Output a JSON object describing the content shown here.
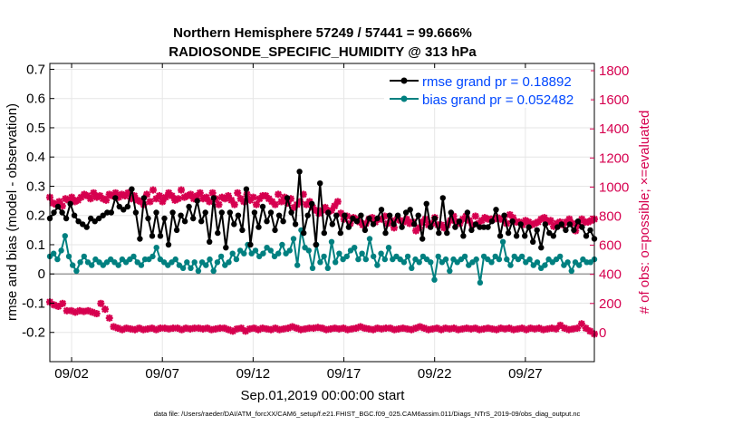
{
  "chart_data": {
    "type": "line",
    "title_line1": "Northern Hemisphere 57249 / 57441 = 99.666%",
    "title_line2": "RADIOSONDE_SPECIFIC_HUMIDITY @ 313 hPa",
    "xlabel": "Sep.01,2019 00:00:00 start",
    "ylabel_left": "rmse and bias (model - observation)",
    "ylabel_right": "# of obs: o=possible; ×=evaluated",
    "footer": "data file: /Users/raeder/DAI/ATM_forcXX/CAM6_setup/f.e21.FHIST_BGC.f09_025.CAM6assim.011/Diags_NTrS_2019-09/obs_diag_output.nc",
    "x_range": [
      0.8,
      30.8
    ],
    "xticks": [
      {
        "value": 2,
        "label": "09/02"
      },
      {
        "value": 7,
        "label": "09/07"
      },
      {
        "value": 12,
        "label": "09/12"
      },
      {
        "value": 17,
        "label": "09/17"
      },
      {
        "value": 22,
        "label": "09/22"
      },
      {
        "value": 27,
        "label": "09/27"
      }
    ],
    "ylim_left": [
      -0.3,
      0.72
    ],
    "yticks_left": [
      {
        "value": -0.2,
        "label": "-0.2"
      },
      {
        "value": -0.1,
        "label": "-0.1"
      },
      {
        "value": 0,
        "label": "0"
      },
      {
        "value": 0.1,
        "label": "0.1"
      },
      {
        "value": 0.2,
        "label": "0.2"
      },
      {
        "value": 0.3,
        "label": "0.3"
      },
      {
        "value": 0.4,
        "label": "0.4"
      },
      {
        "value": 0.5,
        "label": "0.5"
      },
      {
        "value": 0.6,
        "label": "0.6"
      },
      {
        "value": 0.7,
        "label": "0.7"
      }
    ],
    "ylim_right": [
      -200,
      1850
    ],
    "yticks_right": [
      {
        "value": 0,
        "label": "0"
      },
      {
        "value": 200,
        "label": "200"
      },
      {
        "value": 400,
        "label": "400"
      },
      {
        "value": 600,
        "label": "600"
      },
      {
        "value": 800,
        "label": "800"
      },
      {
        "value": 1000,
        "label": "1000"
      },
      {
        "value": 1200,
        "label": "1200"
      },
      {
        "value": 1400,
        "label": "1400"
      },
      {
        "value": 1600,
        "label": "1600"
      },
      {
        "value": 1800,
        "label": "1800"
      }
    ],
    "grid": true,
    "legend_location": "top-right",
    "colors": {
      "rmse": "#000000",
      "bias": "#008080",
      "obs": "#d6004f",
      "legend_text": "#0047ff",
      "right_axis": "#d6004f",
      "grid": "#e6e6e6"
    },
    "series": [
      {
        "name": "rmse grand pr = 0.18892",
        "axis": "left",
        "marker": "circle",
        "values": [
          0.19,
          0.21,
          0.23,
          0.21,
          0.19,
          0.24,
          0.2,
          0.18,
          0.17,
          0.16,
          0.19,
          0.18,
          0.19,
          0.2,
          0.21,
          0.21,
          0.26,
          0.23,
          0.22,
          0.23,
          0.29,
          0.21,
          0.12,
          0.26,
          0.19,
          0.13,
          0.21,
          0.13,
          0.19,
          0.1,
          0.21,
          0.15,
          0.2,
          0.18,
          0.23,
          0.19,
          0.25,
          0.18,
          0.21,
          0.11,
          0.26,
          0.14,
          0.21,
          0.09,
          0.21,
          0.17,
          0.2,
          0.15,
          0.29,
          0.1,
          0.21,
          0.16,
          0.23,
          0.18,
          0.21,
          0.15,
          0.2,
          0.18,
          0.26,
          0.21,
          0.17,
          0.35,
          0.14,
          0.2,
          0.24,
          0.1,
          0.31,
          0.14,
          0.21,
          0.17,
          0.2,
          0.14,
          0.2,
          0.16,
          0.19,
          0.18,
          0.2,
          0.15,
          0.19,
          0.17,
          0.19,
          0.22,
          0.14,
          0.2,
          0.17,
          0.2,
          0.16,
          0.21,
          0.22,
          0.17,
          0.2,
          0.12,
          0.24,
          0.16,
          0.19,
          0.14,
          0.26,
          0.14,
          0.21,
          0.16,
          0.18,
          0.13,
          0.21,
          0.15,
          0.17,
          0.16,
          0.16,
          0.16,
          0.18,
          0.22,
          0.13,
          0.2,
          0.14,
          0.18,
          0.13,
          0.17,
          0.13,
          0.16,
          0.11,
          0.15,
          0.09,
          0.17,
          0.14,
          0.13,
          0.16,
          0.17,
          0.15,
          0.17,
          0.15,
          0.18,
          0.16,
          0.13,
          0.15,
          0.12
        ]
      },
      {
        "name": "bias grand pr = 0.052482",
        "axis": "left",
        "marker": "circle",
        "values": [
          0.06,
          0.07,
          0.05,
          0.08,
          0.13,
          0.06,
          0.03,
          0.01,
          0.04,
          0.06,
          0.04,
          0.03,
          0.05,
          0.04,
          0.03,
          0.04,
          0.05,
          0.04,
          0.03,
          0.05,
          0.04,
          0.05,
          0.06,
          0.04,
          0.03,
          0.05,
          0.05,
          0.06,
          0.09,
          0.05,
          0.04,
          0.03,
          0.04,
          0.05,
          0.03,
          0.02,
          0.04,
          0.02,
          0.04,
          0.01,
          0.04,
          0.03,
          0.05,
          0.01,
          0.04,
          0.06,
          0.03,
          0.04,
          0.07,
          0.05,
          0.08,
          0.07,
          0.1,
          0.07,
          0.08,
          0.06,
          0.07,
          0.09,
          0.08,
          0.06,
          0.07,
          0.1,
          0.07,
          0.08,
          0.12,
          0.03,
          0.15,
          0.09,
          0.08,
          0.02,
          0.1,
          0.04,
          0.06,
          0.02,
          0.11,
          0.04,
          0.07,
          0.05,
          0.06,
          0.08,
          0.09,
          0.05,
          0.07,
          0.05,
          0.12,
          0.06,
          0.03,
          0.07,
          0.05,
          0.09,
          0.05,
          0.06,
          0.05,
          0.04,
          0.06,
          0.02,
          0.05,
          0.04,
          0.06,
          0.05,
          0.04,
          -0.02,
          0.06,
          0.04,
          0.05,
          0.01,
          0.05,
          0.04,
          0.05,
          0.06,
          0.03,
          0.04,
          0.05,
          -0.03,
          0.06,
          0.05,
          0.04,
          0.06,
          0.05,
          0.11,
          0.05,
          0.03,
          0.06,
          0.05,
          0.06,
          0.04,
          0.05,
          0.03,
          0.04,
          0.02,
          0.03,
          0.05,
          0.04,
          0.05,
          0.06,
          0.03,
          0.04,
          0.01,
          0.04,
          0.03,
          0.05,
          0.04,
          0.04,
          0.05
        ]
      },
      {
        "name": "# of obs evaluated",
        "axis": "right",
        "marker": "asterisk",
        "connect": false,
        "values": [
          930,
          890,
          880,
          900,
          870,
          920,
          910,
          930,
          900,
          910,
          930,
          950,
          940,
          920,
          960,
          930,
          940,
          920,
          910,
          950,
          940,
          960,
          930,
          950,
          940,
          960,
          920,
          940,
          910,
          900,
          880,
          950,
          900,
          980,
          920,
          940,
          900,
          930,
          960,
          940,
          910,
          920,
          980,
          930,
          940,
          950,
          920,
          940,
          960,
          920,
          930,
          900,
          960,
          920,
          880,
          930,
          920,
          940,
          910,
          880,
          960,
          920,
          900,
          950,
          910,
          930,
          880,
          920,
          940,
          940,
          920,
          900,
          880,
          950,
          900,
          930,
          890,
          920,
          860,
          880,
          900,
          950,
          880,
          900,
          860,
          840,
          820,
          840,
          860,
          830,
          840,
          870,
          900,
          820,
          780,
          800,
          750,
          790,
          780,
          760,
          740,
          750,
          780,
          790,
          760,
          780,
          780,
          800,
          750,
          770,
          720,
          780,
          770,
          760,
          780,
          750,
          760,
          700,
          720,
          760,
          780,
          740,
          750,
          790,
          740,
          740,
          720,
          740,
          770,
          800,
          760,
          750,
          780,
          800,
          770,
          740,
          800,
          750,
          770,
          790,
          780,
          780,
          780,
          790,
          780,
          780,
          750,
          810,
          790,
          760,
          760,
          740,
          770,
          760,
          740,
          750,
          760,
          780,
          790,
          760,
          770,
          730,
          750,
          760,
          740,
          760,
          780,
          750,
          700,
          740,
          780,
          760,
          760,
          770,
          780
        ]
      },
      {
        "name": "# of obs possible",
        "axis": "right",
        "marker": "asterisk",
        "connect": false,
        "values": [
          210,
          190,
          180,
          200,
          150,
          150,
          140,
          150,
          145,
          150,
          140,
          130,
          200,
          160,
          100,
          40,
          30,
          20,
          30,
          25,
          20,
          30,
          20,
          25,
          30,
          20,
          30,
          30,
          25,
          30,
          30,
          20,
          30,
          25,
          30,
          30,
          25,
          30,
          20,
          25,
          30,
          30,
          20,
          10,
          25,
          30,
          10,
          25,
          30,
          20,
          30,
          25,
          20,
          30,
          20,
          25,
          30,
          40,
          30,
          20,
          25,
          30,
          30,
          35,
          30,
          20,
          25,
          30,
          25,
          30,
          20,
          25,
          30,
          40,
          30,
          25,
          20,
          30,
          25,
          30,
          30,
          20,
          25,
          30,
          25,
          20,
          30,
          40,
          30,
          20,
          25,
          30,
          20,
          30,
          25,
          30,
          20,
          25,
          30,
          25,
          30,
          20,
          25,
          30,
          25,
          20,
          30,
          25,
          30,
          20,
          25,
          30,
          20,
          30,
          25,
          30,
          20,
          25,
          30,
          25,
          50,
          30,
          20,
          25,
          30,
          60,
          30,
          10,
          -10
        ]
      }
    ]
  }
}
